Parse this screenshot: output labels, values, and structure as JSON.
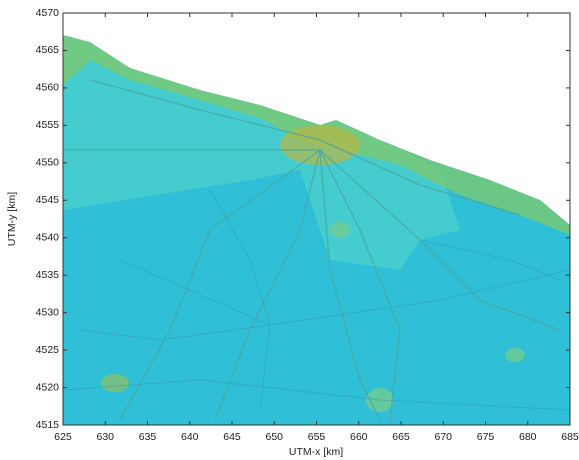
{
  "chart_data": {
    "type": "map",
    "xlabel": "UTM-x [km]",
    "ylabel": "UTM-y [km]",
    "xlim": [
      625,
      685
    ],
    "ylim": [
      4515,
      4570
    ],
    "xticks": [
      625,
      630,
      635,
      640,
      645,
      650,
      655,
      660,
      665,
      670,
      675,
      680,
      685
    ],
    "yticks": [
      4515,
      4520,
      4525,
      4530,
      4535,
      4540,
      4545,
      4550,
      4555,
      4560,
      4565,
      4570
    ]
  }
}
